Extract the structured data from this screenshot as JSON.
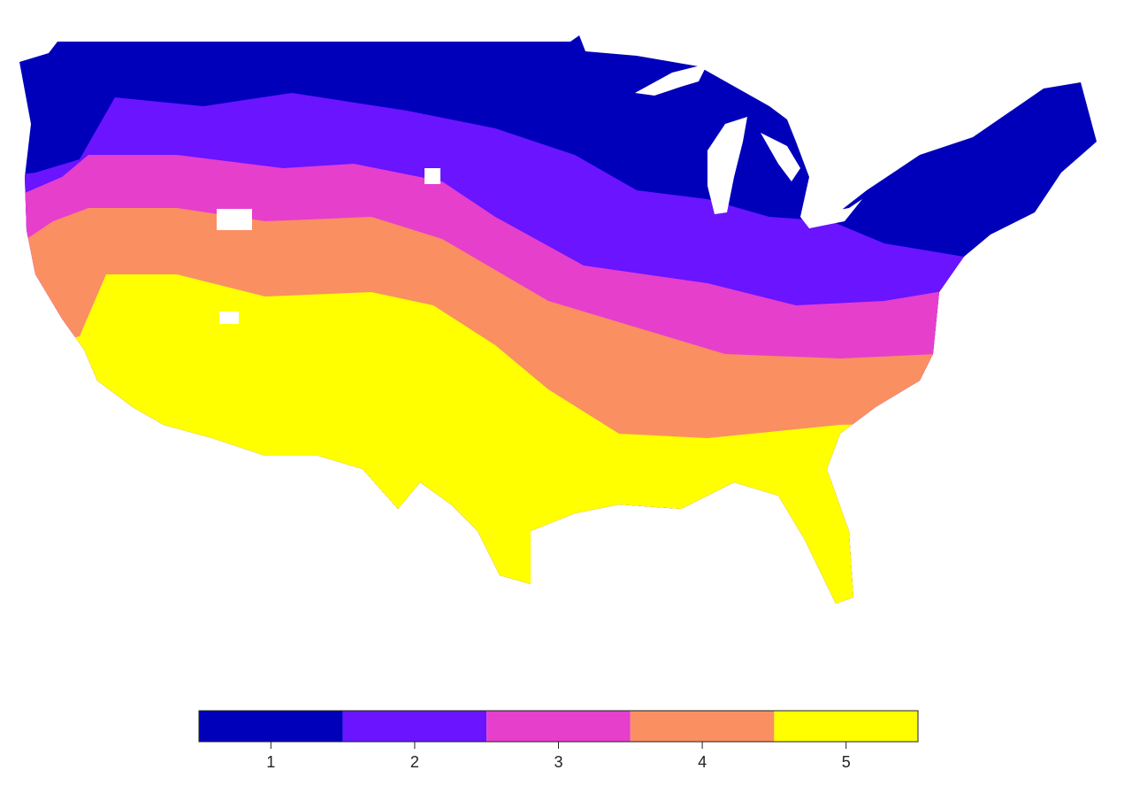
{
  "legend": {
    "classes": [
      {
        "value": 1,
        "color": "#0000bb"
      },
      {
        "value": 2,
        "color": "#6a14ff"
      },
      {
        "value": 3,
        "color": "#e63fcc"
      },
      {
        "value": 4,
        "color": "#fa8f62"
      },
      {
        "value": 5,
        "color": "#ffff00"
      }
    ]
  }
}
